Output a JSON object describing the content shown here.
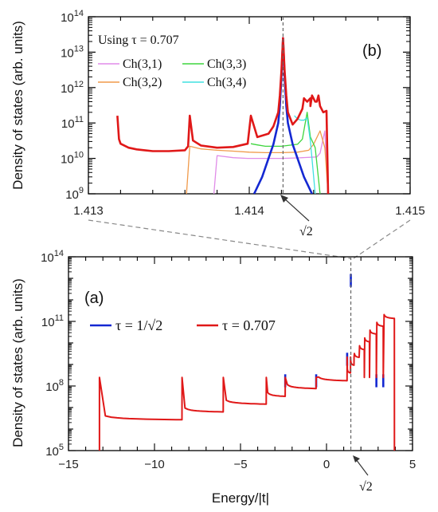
{
  "chart_data": [
    {
      "panel": "(b)",
      "type": "line",
      "ylabel": "Density of states (arb. units)",
      "xlim": [
        1.413,
        1.415
      ],
      "ylim": [
        1000000000.0,
        100000000000000.0
      ],
      "yscale": "log",
      "x_ticks": [
        "1.413",
        "1.414",
        "1.415"
      ],
      "y_ticks": [
        {
          "base": "10",
          "exp": "9"
        },
        {
          "base": "10",
          "exp": "10"
        },
        {
          "base": "10",
          "exp": "11"
        },
        {
          "base": "10",
          "exp": "12"
        },
        {
          "base": "10",
          "exp": "13"
        },
        {
          "base": "10",
          "exp": "14"
        }
      ],
      "legend_title": "Using τ = 0.707",
      "legend": [
        {
          "name": "Ch(3,1)",
          "color": "#e08ce8"
        },
        {
          "name": "Ch(3,3)",
          "color": "#3ed53e"
        },
        {
          "name": "Ch(3,2)",
          "color": "#f09a4a"
        },
        {
          "name": "Ch(3,4)",
          "color": "#40e0e0"
        }
      ],
      "annotation": "√2",
      "annotation_x": 1.41421,
      "series": [
        {
          "name": "Ch(3,1)",
          "color": "#e08ce8",
          "x": [
            1.41378,
            1.4138,
            1.4139,
            1.41399,
            1.41401,
            1.4141,
            1.4142,
            1.4143,
            1.41442,
            1.41444,
            1.41447,
            1.41449
          ],
          "y": [
            1000000000.0,
            12000000000.0,
            10500000000.0,
            10000000000.0,
            10000000000.0,
            10000000000.0,
            10000000000.0,
            10300000000.0,
            11000000000.0,
            14000000000.0,
            60000000000.0,
            1000000000.0
          ]
        },
        {
          "name": "Ch(3,2)",
          "color": "#f09a4a",
          "x": [
            1.41361,
            1.41363,
            1.4137,
            1.4138,
            1.4139,
            1.414,
            1.4141,
            1.4142,
            1.4143,
            1.41437,
            1.4144,
            1.41444,
            1.41447,
            1.41449
          ],
          "y": [
            1000000000.0,
            22000000000.0,
            18500000000.0,
            17000000000.0,
            16000000000.0,
            15000000000.0,
            14500000000.0,
            14500000000.0,
            15000000000.0,
            17000000000.0,
            25000000000.0,
            60000000000.0,
            20000000000.0,
            1000000000.0
          ]
        },
        {
          "name": "Ch(3,3)",
          "color": "#3ed53e",
          "x": [
            1.41401,
            1.41405,
            1.4141,
            1.4142,
            1.4143,
            1.41433,
            1.41436,
            1.41438,
            1.41441,
            1.41444
          ],
          "y": [
            26000000000.0,
            24000000000.0,
            22000000000.0,
            22000000000.0,
            25000000000.0,
            35000000000.0,
            200000000000.0,
            40000000000.0,
            20000000000.0,
            1000000000.0
          ]
        },
        {
          "name": "Ch(3,4)",
          "color": "#40e0e0",
          "x": [
            1.41428,
            1.4143,
            1.41432,
            1.41434,
            1.41436,
            1.41438,
            1.41441
          ],
          "y": [
            160000000000.0,
            130000000000.0,
            120000000000.0,
            120000000000.0,
            140000000000.0,
            30000000000.0,
            1000000000.0
          ]
        },
        {
          "name": "τ = 1/√2",
          "color": "#1428d2",
          "x": [
            1.41403,
            1.41408,
            1.41412,
            1.41415,
            1.41418,
            1.41419,
            1.4142,
            1.41421,
            1.41422,
            1.41423,
            1.41424,
            1.41427,
            1.4143,
            1.41434,
            1.41439
          ],
          "y": [
            1000000000.0,
            3000000000.0,
            10000000000.0,
            25000000000.0,
            100000000000.0,
            300000000000.0,
            2000000000000.0,
            25000000000000.0,
            2000000000000.0,
            300000000000.0,
            100000000000.0,
            25000000000.0,
            10000000000.0,
            3000000000.0,
            1000000000.0
          ]
        },
        {
          "name": "τ = 0.707",
          "color": "#e01818",
          "x": [
            1.41318,
            1.41319,
            1.4132,
            1.41325,
            1.4133,
            1.41335,
            1.4134,
            1.4135,
            1.4136,
            1.41362,
            1.41363,
            1.41365,
            1.4137,
            1.4138,
            1.4139,
            1.41399,
            1.41401,
            1.41405,
            1.41412,
            1.41415,
            1.41418,
            1.41419,
            1.4142,
            1.41421,
            1.41422,
            1.41423,
            1.41424,
            1.41427,
            1.4143,
            1.41433,
            1.41434,
            1.41436,
            1.41438,
            1.41438,
            1.41439,
            1.41441,
            1.41442,
            1.41443,
            1.41444,
            1.41446,
            1.41448,
            1.41449
          ],
          "y": [
            160000000000.0,
            35000000000.0,
            26000000000.0,
            20000000000.0,
            18000000000.0,
            17000000000.0,
            16000000000.0,
            16000000000.0,
            17000000000.0,
            22000000000.0,
            160000000000.0,
            32000000000.0,
            23000000000.0,
            20000000000.0,
            21000000000.0,
            26000000000.0,
            160000000000.0,
            40000000000.0,
            50000000000.0,
            80000000000.0,
            200000000000.0,
            600000000000.0,
            3000000000000.0,
            25000000000000.0,
            3000000000000.0,
            600000000000.0,
            200000000000.0,
            90000000000.0,
            130000000000.0,
            250000000000.0,
            500000000000.0,
            400000000000.0,
            500000000000.0,
            300000000000.0,
            600000000000.0,
            400000000000.0,
            400000000000.0,
            600000000000.0,
            300000000000.0,
            200000000000.0,
            220000000000.0,
            1000000000.0
          ]
        }
      ]
    },
    {
      "panel": "(a)",
      "type": "line",
      "xlabel": "Energy/|t|",
      "ylabel": "Density of states (arb. units)",
      "xlim": [
        -15,
        5
      ],
      "ylim": [
        100000.0,
        100000000000000.0
      ],
      "yscale": "log",
      "x_ticks": [
        "−15",
        "−10",
        "−5",
        "0",
        "5"
      ],
      "y_ticks": [
        {
          "base": "10",
          "exp": "5"
        },
        {
          "base": "10",
          "exp": "8"
        },
        {
          "base": "10",
          "exp": "11"
        },
        {
          "base": "10",
          "exp": "14"
        }
      ],
      "legend": [
        {
          "name": "τ = 1/√2",
          "color": "#1428d2"
        },
        {
          "name": "τ = 0.707",
          "color": "#e01818"
        }
      ],
      "annotation": "√2",
      "annotation_x": 1.41421,
      "van_hove_edges": [
        -13.2,
        -8.4,
        -6.0,
        -3.5,
        -2.4,
        -0.6,
        1.2,
        1.4,
        1.6,
        1.9,
        2.2,
        2.5,
        2.9,
        3.3
      ],
      "blue_tips": [
        {
          "x": -2.4,
          "y": 350000000.0
        },
        {
          "x": -0.6,
          "y": 350000000.0
        },
        {
          "x": 1.2,
          "y": 3500000000.0
        },
        {
          "x": 2.9,
          "y": 350000000.0
        },
        {
          "x": 3.3,
          "y": 350000000.0
        },
        {
          "x": 1.41421,
          "y": 16000000000000.0
        }
      ]
    }
  ]
}
